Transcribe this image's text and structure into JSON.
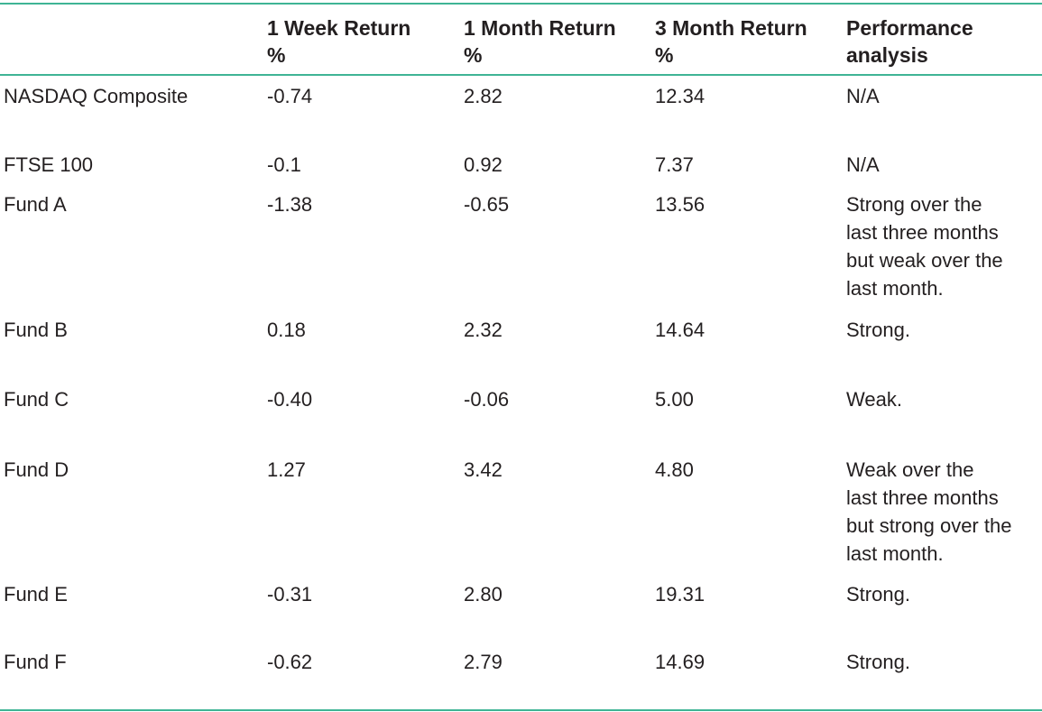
{
  "table": {
    "headers": [
      [
        "",
        ""
      ],
      [
        "1 Week Return",
        "%"
      ],
      [
        "1 Month Return",
        "%"
      ],
      [
        "3 Month Return",
        "%"
      ],
      [
        "Performance",
        "analysis"
      ]
    ],
    "rows": [
      {
        "name": "NASDAQ Composite",
        "week": "-0.74",
        "month": "2.82",
        "three_month": "12.34",
        "analysis": [
          "N/A"
        ]
      },
      {
        "name": "FTSE 100",
        "week": "-0.1",
        "month": "0.92",
        "three_month": "7.37",
        "analysis": [
          "N/A"
        ]
      },
      {
        "name": "Fund A",
        "week": "-1.38",
        "month": "-0.65",
        "three_month": "13.56",
        "analysis": [
          "Strong over the",
          "last three months",
          "but weak over the",
          "last month."
        ]
      },
      {
        "name": "Fund B",
        "week": "0.18",
        "month": "2.32",
        "three_month": "14.64",
        "analysis": [
          "Strong."
        ]
      },
      {
        "name": "Fund C",
        "week": "-0.40",
        "month": "-0.06",
        "three_month": "5.00",
        "analysis": [
          "Weak."
        ]
      },
      {
        "name": "Fund D",
        "week": "1.27",
        "month": "3.42",
        "three_month": "4.80",
        "analysis": [
          "Weak over the",
          "last three months",
          "but strong over the",
          "last month."
        ]
      },
      {
        "name": "Fund E",
        "week": "-0.31",
        "month": "2.80",
        "three_month": "19.31",
        "analysis": [
          "Strong."
        ]
      },
      {
        "name": "Fund F",
        "week": "-0.62",
        "month": "2.79",
        "three_month": "14.69",
        "analysis": [
          "Strong."
        ]
      }
    ]
  },
  "colors": {
    "rule": "#3fb495",
    "text": "#231f20"
  }
}
